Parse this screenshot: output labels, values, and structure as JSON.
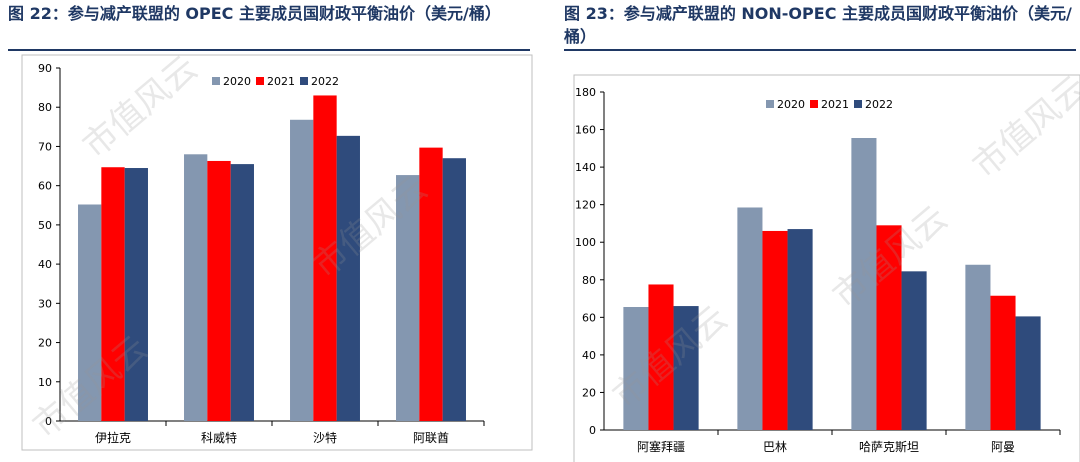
{
  "figures": [
    {
      "id": "left",
      "title": "图 22：参与减产联盟的 OPEC 主要成员国财政平衡油价（美元/桶）"
    },
    {
      "id": "right",
      "title": "图 23：参与减产联盟的 NON-OPEC 主要成员国财政平衡油价（美元/桶）"
    }
  ],
  "watermark": "市值风云",
  "colors": {
    "2020": "#8497b0",
    "2021": "#ff0000",
    "2022": "#2f4b7c",
    "title": "#1f3864"
  },
  "chart_data": [
    {
      "type": "bar",
      "title": "图 22：参与减产联盟的 OPEC 主要成员国财政平衡油价（美元/桶）",
      "categories": [
        "伊拉克",
        "科威特",
        "沙特",
        "阿联酋"
      ],
      "series": [
        {
          "name": "2020",
          "values": [
            55.2,
            68,
            76.8,
            62.7
          ]
        },
        {
          "name": "2021",
          "values": [
            64.7,
            66.3,
            83,
            69.7
          ]
        },
        {
          "name": "2022",
          "values": [
            64.5,
            65.5,
            72.7,
            67
          ]
        }
      ],
      "yticks": [
        0,
        10,
        20,
        30,
        40,
        50,
        60,
        70,
        80,
        90
      ],
      "ylim": [
        0,
        90
      ],
      "grid": false,
      "legend": "top"
    },
    {
      "type": "bar",
      "title": "图 23：参与减产联盟的 NON-OPEC 主要成员国财政平衡油价（美元/桶）",
      "categories": [
        "阿塞拜疆",
        "巴林",
        "哈萨克斯坦",
        "阿曼"
      ],
      "series": [
        {
          "name": "2020",
          "values": [
            65.5,
            118.5,
            155.5,
            88
          ]
        },
        {
          "name": "2021",
          "values": [
            77.5,
            106,
            109,
            71.5
          ]
        },
        {
          "name": "2022",
          "values": [
            66,
            107,
            84.5,
            60.5
          ]
        }
      ],
      "yticks": [
        0,
        20,
        40,
        60,
        80,
        100,
        120,
        140,
        160,
        180
      ],
      "ylim": [
        0,
        180
      ],
      "grid": false,
      "legend": "top"
    }
  ]
}
